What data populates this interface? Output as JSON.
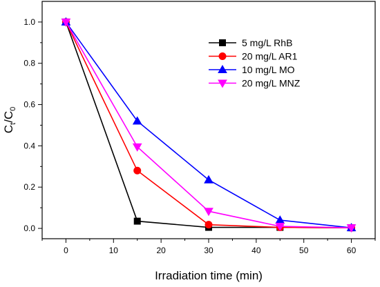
{
  "chart_data": {
    "type": "line",
    "xlabel": "Irradiation time (min)",
    "ylabel": {
      "main": "C",
      "sub1": "t",
      "sep": "/C",
      "sub2": "0"
    },
    "xlim": [
      -5,
      65
    ],
    "ylim": [
      -0.05,
      1.1
    ],
    "x_ticks": [
      0,
      10,
      20,
      30,
      40,
      50,
      60
    ],
    "y_ticks": [
      "0.0",
      "0.2",
      "0.4",
      "0.6",
      "0.8",
      "1.0"
    ],
    "legend_position": "top-right",
    "grid": false,
    "x": [
      0,
      15,
      30,
      45,
      60
    ],
    "series": [
      {
        "name": "5 mg/L RhB",
        "color": "#000000",
        "marker": "square",
        "values": [
          1.0,
          0.035,
          0.005,
          0.005,
          0.003
        ]
      },
      {
        "name": "20 mg/L AR1",
        "color": "#ff0000",
        "marker": "circle",
        "values": [
          1.0,
          0.28,
          0.018,
          0.005,
          0.003
        ]
      },
      {
        "name": "10 mg/L MO",
        "color": "#0000ff",
        "marker": "triangle-up",
        "values": [
          1.0,
          0.52,
          0.235,
          0.04,
          0.003
        ]
      },
      {
        "name": "20 mg/L MNZ",
        "color": "#ff00ff",
        "marker": "triangle-down",
        "values": [
          1.0,
          0.395,
          0.083,
          0.01,
          0.003
        ]
      }
    ]
  }
}
